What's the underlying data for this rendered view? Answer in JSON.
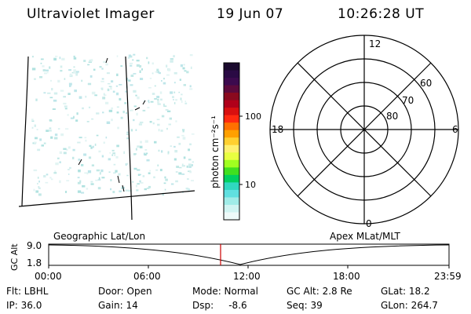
{
  "header": {
    "title": "Ultraviolet Imager",
    "date": "19 Jun 07",
    "time": "10:26:28 UT"
  },
  "colorbar": {
    "unit_label": "photon cm⁻²s⁻¹",
    "ticks": [
      "100",
      "10"
    ],
    "colors": [
      "#1a0a2e",
      "#2a0a44",
      "#3c0a4e",
      "#5c0a3c",
      "#8a0a1e",
      "#b0001a",
      "#d81010",
      "#ff2a10",
      "#ff7000",
      "#ffa000",
      "#ffd030",
      "#fff070",
      "#e8ff40",
      "#a0ff20",
      "#40e020",
      "#00d060",
      "#30d8c0",
      "#60e0e0",
      "#a0ece8",
      "#d0f4f2",
      "#eefaf9"
    ]
  },
  "polar": {
    "mlt_labels": {
      "top": "12",
      "left": "18",
      "right": "6",
      "bottom": "0"
    },
    "lat_labels": [
      "60",
      "70",
      "80"
    ]
  },
  "timeline": {
    "left_title": "Geographic Lat/Lon",
    "right_title": "Apex MLat/MLT",
    "axis_title": "GC Alt",
    "y_ticks": [
      "9.0",
      "1.8"
    ],
    "x_ticks": [
      "00:00",
      "06:00",
      "12:00",
      "18:00",
      "23:59"
    ],
    "marker_color": "#cc0000"
  },
  "info": {
    "row1": {
      "flt": "Flt: LBHL",
      "door": "Door: Open",
      "mode": "Mode: Normal",
      "gcalt": "GC Alt: 2.8 Re",
      "glat": "GLat:  18.2"
    },
    "row2": {
      "ip": "IP: 36.0",
      "gain": "Gain: 14",
      "dsp": "Dsp:     -8.6",
      "seq": "Seq: 39",
      "glon": "GLon: 264.7"
    }
  }
}
